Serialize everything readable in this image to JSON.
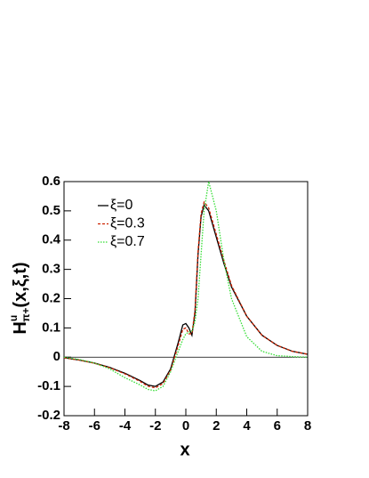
{
  "chart_data": {
    "type": "line",
    "xlabel": "x",
    "ylabel": {
      "base": "H",
      "sup": "u",
      "sub": "π+",
      "args": "(x,ξ,t)"
    },
    "x": [
      -8,
      -7,
      -6,
      -5,
      -4,
      -3,
      -2.5,
      -2,
      -1.5,
      -1,
      -0.5,
      -0.2,
      0,
      0.2,
      0.4,
      0.6,
      0.8,
      1,
      1.2,
      1.5,
      2,
      2.5,
      3,
      4,
      5,
      6,
      7,
      8
    ],
    "series": [
      {
        "name": "ξ=0",
        "color": "#000000",
        "dash": "solid",
        "values": [
          -0.002,
          -0.01,
          -0.02,
          -0.035,
          -0.055,
          -0.08,
          -0.095,
          -0.1,
          -0.085,
          -0.04,
          0.05,
          0.11,
          0.115,
          0.1,
          0.075,
          0.15,
          0.35,
          0.48,
          0.52,
          0.5,
          0.41,
          0.32,
          0.24,
          0.14,
          0.075,
          0.04,
          0.02,
          0.01
        ]
      },
      {
        "name": "ξ=0.3",
        "color": "#cc2200",
        "dash": "dashed",
        "values": [
          -0.002,
          -0.01,
          -0.021,
          -0.036,
          -0.057,
          -0.083,
          -0.099,
          -0.105,
          -0.09,
          -0.045,
          0.04,
          0.095,
          0.1,
          0.08,
          0.08,
          0.16,
          0.36,
          0.49,
          0.53,
          0.51,
          0.42,
          0.33,
          0.245,
          0.14,
          0.075,
          0.04,
          0.02,
          0.01
        ]
      },
      {
        "name": "ξ=0.7",
        "color": "#33dd33",
        "dash": "dotted",
        "values": [
          0,
          -0.008,
          -0.02,
          -0.04,
          -0.07,
          -0.095,
          -0.11,
          -0.115,
          -0.1,
          -0.05,
          0.02,
          0.06,
          0.08,
          0.085,
          0.09,
          0.12,
          0.2,
          0.35,
          0.5,
          0.6,
          0.5,
          0.33,
          0.2,
          0.07,
          0.02,
          0.005,
          0.002,
          0
        ]
      }
    ],
    "xlim": [
      -8,
      8
    ],
    "ylim": [
      -0.2,
      0.6
    ],
    "xticks": [
      -8,
      -6,
      -4,
      -2,
      0,
      2,
      4,
      6,
      8
    ],
    "yticks": [
      -0.2,
      -0.1,
      0,
      0.1,
      0.2,
      0.3,
      0.4,
      0.5,
      0.6
    ],
    "zero_line": true
  }
}
